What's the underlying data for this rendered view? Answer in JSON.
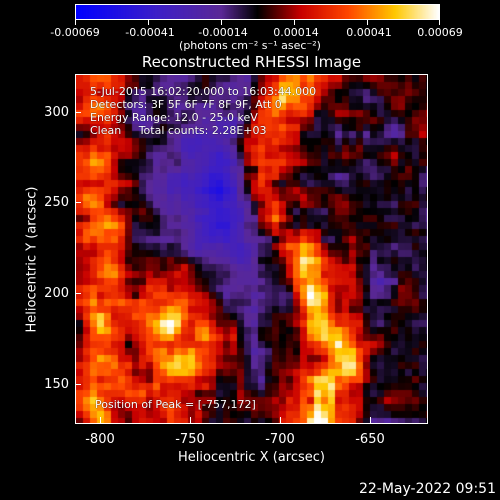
{
  "colorbar": {
    "tick_labels": [
      "-0.00069",
      "-0.00041",
      "-0.00014",
      "0.00014",
      "0.00041",
      "0.00069"
    ],
    "units": "(photons cm⁻² s⁻¹ asec⁻²)"
  },
  "title": "Reconstructed RHESSI Image",
  "info": {
    "time": "5-Jul-2015 16:02:20.000 to 16:03:44.000",
    "detectors": "Detectors: 3F 5F 6F 7F 8F 9F, Att 0",
    "energy": "Energy Range: 12.0 - 25.0 keV",
    "clean": "Clean     Total counts: 2.28E+03",
    "peak": "Position of Peak = [-757,172]"
  },
  "axes": {
    "xlabel": "Heliocentric X (arcsec)",
    "ylabel": "Heliocentric Y (arcsec)",
    "xticks": [
      "-800",
      "-750",
      "-700",
      "-650"
    ],
    "yticks": [
      "300",
      "250",
      "200",
      "150"
    ]
  },
  "footer_date": "22-May-2022 09:51",
  "chart_data": {
    "type": "heatmap",
    "title": "Reconstructed RHESSI Image",
    "xlabel": "Heliocentric X (arcsec)",
    "ylabel": "Heliocentric Y (arcsec)",
    "xlim": [
      -812,
      -617
    ],
    "ylim": [
      128,
      321
    ],
    "color_range": [
      -0.00069,
      0.00069
    ],
    "peak": [
      -757,
      172
    ]
  }
}
